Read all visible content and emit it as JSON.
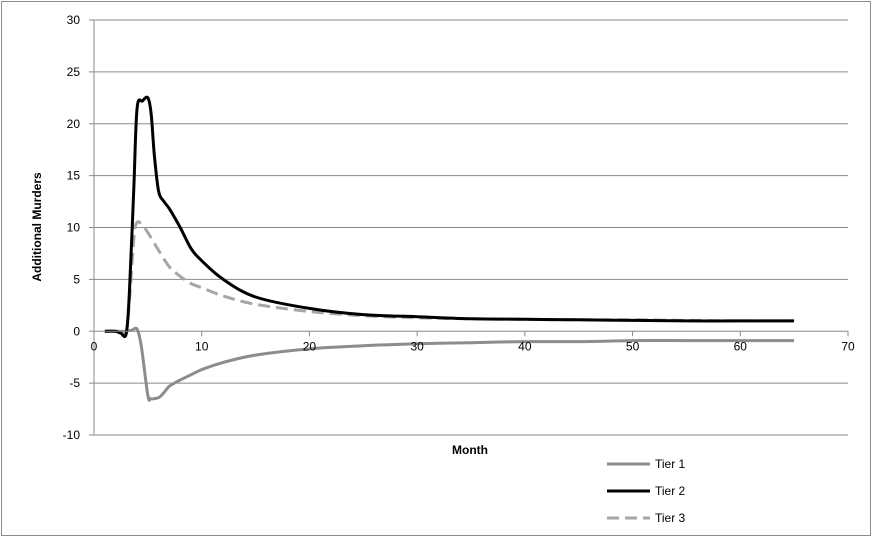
{
  "chart_data": {
    "type": "line",
    "title": "",
    "xlabel": "Month",
    "ylabel": "Additional Murders",
    "xlim": [
      0,
      70
    ],
    "ylim": [
      -10,
      30
    ],
    "x_ticks": [
      0,
      10,
      20,
      30,
      40,
      50,
      60,
      70
    ],
    "y_ticks": [
      -10,
      -5,
      0,
      5,
      10,
      15,
      20,
      25,
      30
    ],
    "grid": "horizontal",
    "legend_position": "bottom-right",
    "series": [
      {
        "name": "Tier 1",
        "color": "#8c8c8c",
        "dash": "solid",
        "x": [
          1,
          2,
          2.8,
          3.5,
          4,
          4.4,
          5,
          5.3,
          6,
          6.5,
          7,
          8,
          9,
          10,
          12,
          15,
          20,
          25,
          30,
          35,
          40,
          45,
          50,
          55,
          60,
          65
        ],
        "y": [
          0,
          0,
          0,
          0.1,
          0.2,
          -1.5,
          -6.2,
          -6.5,
          -6.4,
          -5.9,
          -5.3,
          -4.7,
          -4.2,
          -3.7,
          -3.0,
          -2.3,
          -1.7,
          -1.4,
          -1.2,
          -1.1,
          -1.0,
          -1.0,
          -0.9,
          -0.9,
          -0.9,
          -0.9
        ]
      },
      {
        "name": "Tier 2",
        "color": "#000000",
        "dash": "solid",
        "x": [
          1,
          2,
          2.5,
          3,
          3.3,
          3.7,
          4,
          4.5,
          5,
          5.3,
          5.6,
          6,
          6.5,
          7,
          8,
          9,
          10,
          12,
          15,
          20,
          25,
          30,
          35,
          40,
          45,
          50,
          55,
          60,
          65
        ],
        "y": [
          0,
          0,
          -0.2,
          -0.2,
          4,
          14,
          21.5,
          22.2,
          22.5,
          21,
          17,
          13.5,
          12.5,
          11.8,
          10,
          8,
          6.8,
          5,
          3.3,
          2.2,
          1.6,
          1.4,
          1.2,
          1.15,
          1.1,
          1.05,
          1.0,
          1.0,
          1.0
        ]
      },
      {
        "name": "Tier 3",
        "color": "#a6a6a6",
        "dash": "dashed",
        "x": [
          1,
          2,
          2.5,
          3,
          3.3,
          3.7,
          4,
          4.5,
          5,
          6,
          7,
          8,
          9,
          10,
          12,
          15,
          20,
          25,
          30,
          35,
          40,
          45,
          50,
          55,
          60,
          65
        ],
        "y": [
          0,
          0,
          0,
          0,
          3,
          9,
          10.5,
          10.2,
          9.5,
          7.8,
          6.2,
          5.3,
          4.6,
          4.2,
          3.4,
          2.6,
          1.9,
          1.5,
          1.3,
          1.2,
          1.15,
          1.1,
          1.1,
          1.05,
          1.0,
          1.0
        ]
      }
    ]
  }
}
